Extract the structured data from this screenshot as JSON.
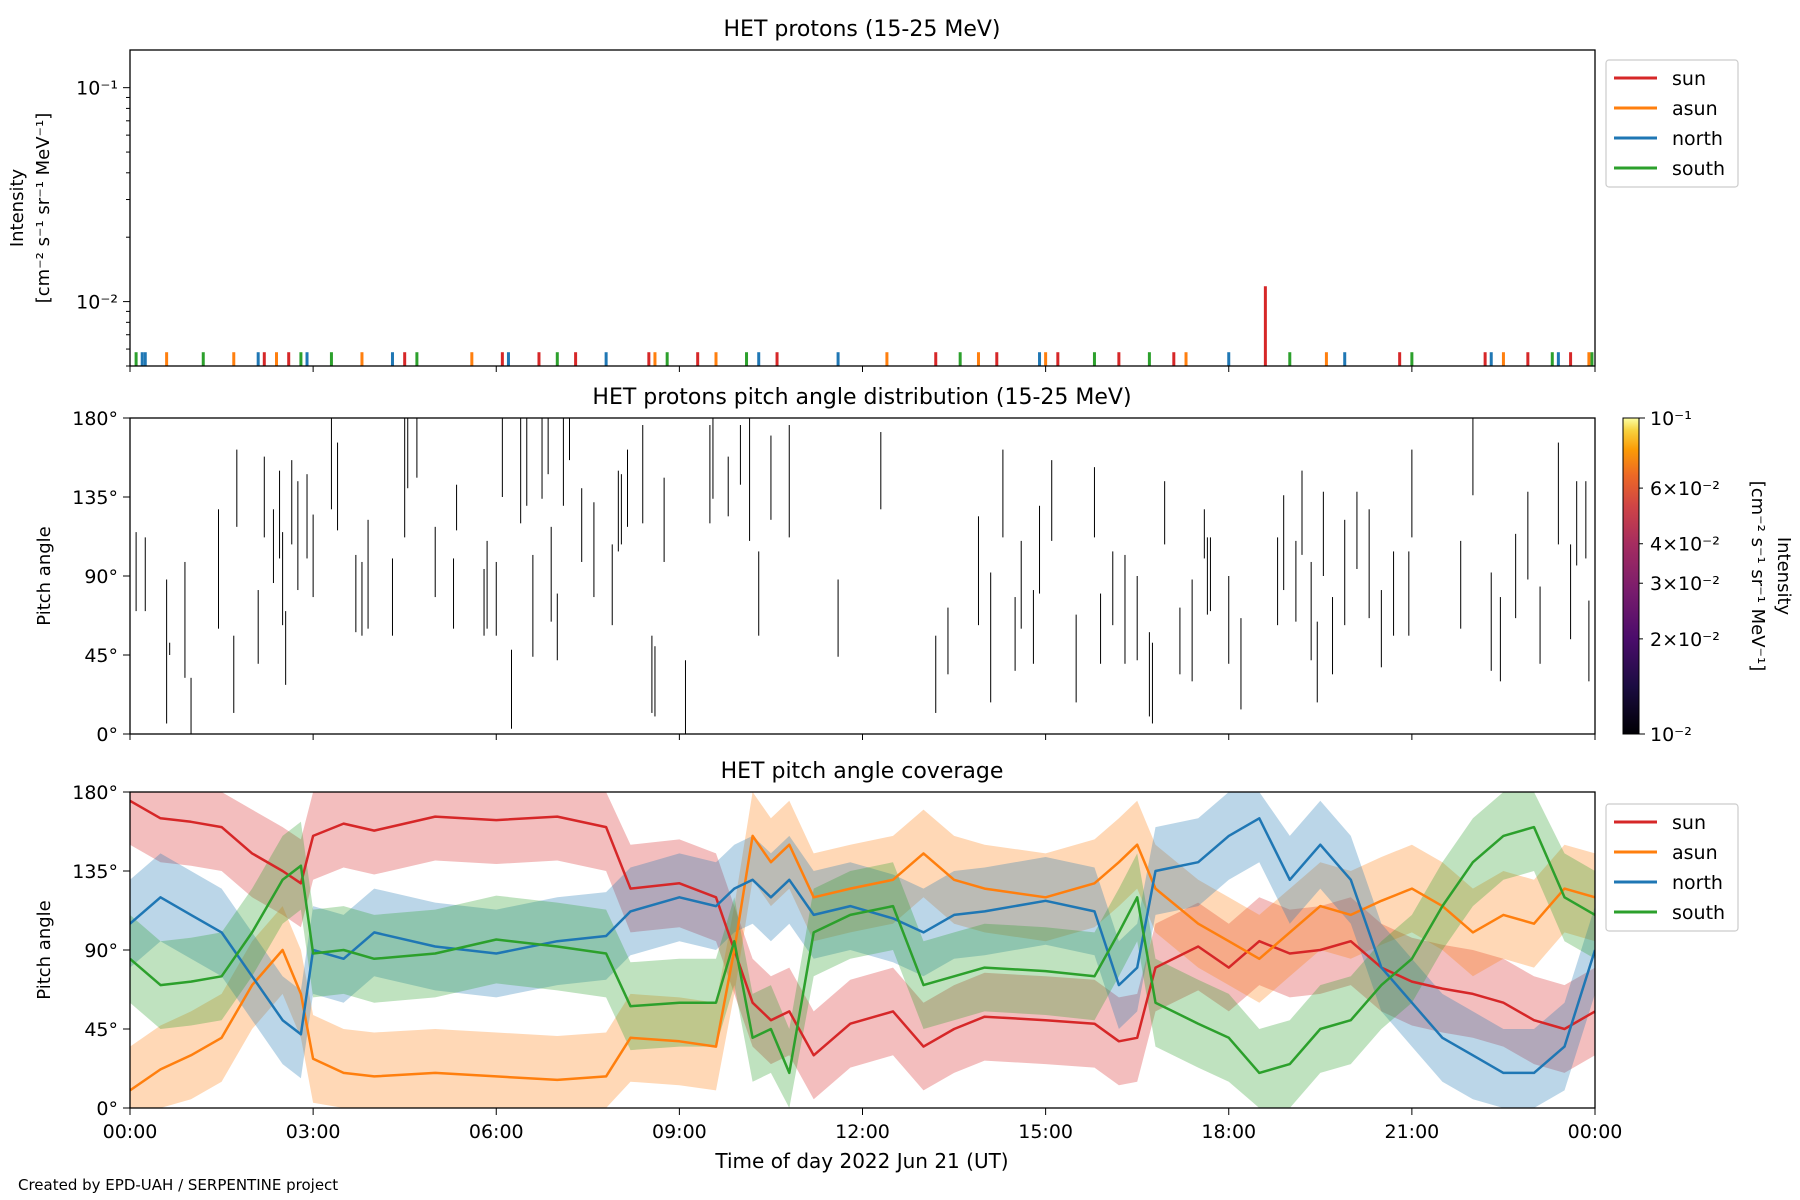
{
  "footer": {
    "credit": "Created by EPD-UAH / SERPENTINE project"
  },
  "colors": {
    "sun": "#d62728",
    "asun": "#ff7f0e",
    "north": "#1f77b4",
    "south": "#2ca02c"
  },
  "chart_data": [
    {
      "type": "bar",
      "title": "HET protons (15-25 MeV)",
      "ylabel_line1": "Intensity",
      "ylabel_line2": "[cm⁻² s⁻¹ sr⁻¹ MeV⁻¹]",
      "yscale": "log",
      "ylim": [
        0.005,
        0.15
      ],
      "y_ticks": [
        {
          "value": 0.1,
          "label": "10⁻¹"
        },
        {
          "value": 0.01,
          "label": "10⁻²"
        }
      ],
      "xlim_hours": [
        0,
        24
      ],
      "legend": {
        "placement": "outside-top-right",
        "entries": [
          "sun",
          "asun",
          "north",
          "south"
        ]
      },
      "series": [
        {
          "name": "sun",
          "x": [
            2.2,
            2.6,
            4.5,
            6.1,
            6.7,
            7.3,
            8.5,
            9.3,
            10.6,
            13.2,
            14.2,
            15.2,
            16.2,
            17.1,
            18.6,
            20.8,
            22.2,
            22.9,
            23.6
          ],
          "values": [
            0.0058,
            0.0058,
            0.0058,
            0.0058,
            0.0058,
            0.0058,
            0.0058,
            0.0058,
            0.0058,
            0.0058,
            0.0058,
            0.0058,
            0.0058,
            0.0058,
            0.0118,
            0.0058,
            0.0058,
            0.0058,
            0.0058
          ]
        },
        {
          "name": "asun",
          "x": [
            0.6,
            1.7,
            2.4,
            3.8,
            5.6,
            8.6,
            9.6,
            12.4,
            13.9,
            15.0,
            17.3,
            19.6,
            22.5,
            23.9
          ],
          "values": [
            0.0058,
            0.0058,
            0.0058,
            0.0058,
            0.0058,
            0.0058,
            0.0058,
            0.0058,
            0.0058,
            0.0058,
            0.0058,
            0.0058,
            0.0058,
            0.0058
          ]
        },
        {
          "name": "north",
          "x": [
            0.2,
            0.25,
            2.1,
            2.9,
            4.3,
            6.2,
            7.8,
            10.3,
            11.6,
            14.9,
            18.0,
            19.9,
            22.3,
            23.4
          ],
          "values": [
            0.0058,
            0.0058,
            0.0058,
            0.0058,
            0.0058,
            0.0058,
            0.0058,
            0.0058,
            0.0058,
            0.0058,
            0.0058,
            0.0058,
            0.0058,
            0.0058
          ]
        },
        {
          "name": "south",
          "x": [
            0.1,
            1.2,
            2.8,
            3.3,
            4.7,
            7.0,
            8.8,
            10.1,
            13.6,
            15.8,
            16.7,
            19.0,
            21.0,
            23.3,
            23.95
          ],
          "values": [
            0.0058,
            0.0058,
            0.0058,
            0.0058,
            0.0058,
            0.0058,
            0.0058,
            0.0058,
            0.0058,
            0.0058,
            0.0058,
            0.0058,
            0.0058,
            0.0058,
            0.0058
          ]
        }
      ]
    },
    {
      "type": "heatmap",
      "title": "HET protons pitch angle distribution (15-25 MeV)",
      "ylabel": "Pitch angle",
      "ylim": [
        0,
        180
      ],
      "y_ticks": [
        {
          "value": 0,
          "label": "0°"
        },
        {
          "value": 45,
          "label": "45°"
        },
        {
          "value": 90,
          "label": "90°"
        },
        {
          "value": 135,
          "label": "135°"
        },
        {
          "value": 180,
          "label": "180°"
        }
      ],
      "xlim_hours": [
        0,
        24
      ],
      "colorbar": {
        "label": "Intensity [cm⁻² s⁻¹ sr⁻¹ MeV⁻¹]",
        "label_line1": "Intensity",
        "label_line2": "[cm⁻² s⁻¹ sr⁻¹ MeV⁻¹]",
        "scale": "log",
        "range": [
          0.01,
          0.1
        ],
        "ticks": [
          {
            "value": 0.1,
            "label": "10⁻¹"
          },
          {
            "value": 0.06,
            "label": "6×10⁻²"
          },
          {
            "value": 0.04,
            "label": "4×10⁻²"
          },
          {
            "value": 0.03,
            "label": "3×10⁻²"
          },
          {
            "value": 0.02,
            "label": "2×10⁻²"
          },
          {
            "value": 0.01,
            "label": "10⁻²"
          }
        ]
      },
      "segments": [
        [
          0.1,
          70,
          115
        ],
        [
          0.25,
          70,
          112
        ],
        [
          0.6,
          6,
          88
        ],
        [
          0.65,
          45,
          52
        ],
        [
          0.9,
          32,
          98
        ],
        [
          1.0,
          0,
          32
        ],
        [
          1.45,
          60,
          128
        ],
        [
          1.7,
          12,
          56
        ],
        [
          1.75,
          118,
          162
        ],
        [
          2.1,
          40,
          82
        ],
        [
          2.2,
          112,
          158
        ],
        [
          2.35,
          86,
          128
        ],
        [
          2.45,
          100,
          150
        ],
        [
          2.5,
          62,
          115
        ],
        [
          2.55,
          28,
          70
        ],
        [
          2.65,
          108,
          156
        ],
        [
          2.75,
          82,
          144
        ],
        [
          2.9,
          100,
          148
        ],
        [
          3.0,
          78,
          125
        ],
        [
          3.3,
          128,
          180
        ],
        [
          3.4,
          116,
          166
        ],
        [
          3.7,
          58,
          102
        ],
        [
          3.8,
          56,
          98
        ],
        [
          3.9,
          60,
          122
        ],
        [
          4.3,
          56,
          100
        ],
        [
          4.5,
          112,
          180
        ],
        [
          4.55,
          140,
          180
        ],
        [
          4.7,
          146,
          180
        ],
        [
          5.0,
          78,
          118
        ],
        [
          5.3,
          60,
          100
        ],
        [
          5.35,
          116,
          142
        ],
        [
          5.8,
          56,
          94
        ],
        [
          5.85,
          60,
          110
        ],
        [
          6.0,
          56,
          98
        ],
        [
          6.1,
          135,
          182
        ],
        [
          6.25,
          3,
          48
        ],
        [
          6.4,
          120,
          180
        ],
        [
          6.5,
          130,
          180
        ],
        [
          6.6,
          44,
          102
        ],
        [
          6.75,
          134,
          182
        ],
        [
          6.85,
          148,
          180
        ],
        [
          6.9,
          64,
          118
        ],
        [
          7.0,
          42,
          80
        ],
        [
          7.1,
          130,
          180
        ],
        [
          7.2,
          156,
          180
        ],
        [
          7.4,
          98,
          140
        ],
        [
          7.6,
          78,
          132
        ],
        [
          7.9,
          62,
          108
        ],
        [
          8.0,
          104,
          150
        ],
        [
          8.05,
          108,
          148
        ],
        [
          8.15,
          118,
          162
        ],
        [
          8.4,
          120,
          176
        ],
        [
          8.55,
          12,
          56
        ],
        [
          8.6,
          10,
          50
        ],
        [
          8.75,
          98,
          146
        ],
        [
          9.1,
          0,
          42
        ],
        [
          9.5,
          120,
          176
        ],
        [
          9.55,
          134,
          180
        ],
        [
          9.8,
          124,
          158
        ],
        [
          10.0,
          142,
          176
        ],
        [
          10.15,
          110,
          180
        ],
        [
          10.3,
          56,
          104
        ],
        [
          10.5,
          122,
          170
        ],
        [
          10.8,
          112,
          176
        ],
        [
          11.6,
          44,
          88
        ],
        [
          12.3,
          128,
          172
        ],
        [
          13.2,
          12,
          56
        ],
        [
          13.4,
          34,
          72
        ],
        [
          13.9,
          62,
          124
        ],
        [
          14.1,
          18,
          92
        ],
        [
          14.3,
          112,
          162
        ],
        [
          14.5,
          36,
          78
        ],
        [
          14.6,
          60,
          110
        ],
        [
          14.8,
          40,
          82
        ],
        [
          14.9,
          80,
          130
        ],
        [
          15.1,
          110,
          156
        ],
        [
          15.5,
          18,
          68
        ],
        [
          15.8,
          112,
          152
        ],
        [
          15.9,
          40,
          80
        ],
        [
          16.1,
          62,
          104
        ],
        [
          16.3,
          40,
          102
        ],
        [
          16.5,
          42,
          90
        ],
        [
          16.7,
          10,
          58
        ],
        [
          16.75,
          6,
          52
        ],
        [
          16.95,
          108,
          144
        ],
        [
          17.2,
          34,
          72
        ],
        [
          17.4,
          30,
          88
        ],
        [
          17.6,
          100,
          128
        ],
        [
          17.65,
          68,
          112
        ],
        [
          17.7,
          70,
          112
        ],
        [
          18.0,
          40,
          90
        ],
        [
          18.2,
          14,
          66
        ],
        [
          18.8,
          62,
          112
        ],
        [
          18.9,
          82,
          136
        ],
        [
          19.1,
          64,
          110
        ],
        [
          19.2,
          102,
          150
        ],
        [
          19.35,
          42,
          98
        ],
        [
          19.45,
          18,
          64
        ],
        [
          19.55,
          90,
          138
        ],
        [
          19.7,
          34,
          78
        ],
        [
          19.9,
          62,
          122
        ],
        [
          20.1,
          94,
          138
        ],
        [
          20.3,
          66,
          128
        ],
        [
          20.5,
          38,
          82
        ],
        [
          20.7,
          56,
          104
        ],
        [
          20.95,
          56,
          104
        ],
        [
          21.0,
          112,
          162
        ],
        [
          21.8,
          60,
          110
        ],
        [
          22.0,
          136,
          180
        ],
        [
          22.3,
          36,
          92
        ],
        [
          22.45,
          30,
          78
        ],
        [
          22.7,
          66,
          114
        ],
        [
          22.9,
          88,
          138
        ],
        [
          23.1,
          40,
          84
        ],
        [
          23.4,
          108,
          166
        ],
        [
          23.6,
          54,
          108
        ],
        [
          23.7,
          96,
          144
        ],
        [
          23.85,
          100,
          144
        ],
        [
          23.9,
          30,
          76
        ]
      ]
    },
    {
      "type": "area",
      "title": "HET pitch angle coverage",
      "xlabel": "Time of day 2022 Jun 21 (UT)",
      "ylabel": "Pitch angle",
      "ylim": [
        0,
        180
      ],
      "y_ticks": [
        {
          "value": 0,
          "label": "0°"
        },
        {
          "value": 45,
          "label": "45°"
        },
        {
          "value": 90,
          "label": "90°"
        },
        {
          "value": 135,
          "label": "135°"
        },
        {
          "value": 180,
          "label": "180°"
        }
      ],
      "xlim_hours": [
        0,
        24
      ],
      "x_ticks": [
        {
          "value": 0,
          "label": "00:00"
        },
        {
          "value": 3,
          "label": "03:00"
        },
        {
          "value": 6,
          "label": "06:00"
        },
        {
          "value": 9,
          "label": "09:00"
        },
        {
          "value": 12,
          "label": "12:00"
        },
        {
          "value": 15,
          "label": "15:00"
        },
        {
          "value": 18,
          "label": "18:00"
        },
        {
          "value": 21,
          "label": "21:00"
        },
        {
          "value": 24,
          "label": "00:00"
        }
      ],
      "band_halfwidth_deg": 25,
      "legend": {
        "placement": "outside-top-right",
        "entries": [
          "sun",
          "asun",
          "north",
          "south"
        ]
      },
      "x": [
        0,
        0.5,
        1,
        1.5,
        2,
        2.5,
        2.8,
        3,
        3.5,
        4,
        5,
        6,
        7,
        7.8,
        8.2,
        9,
        9.6,
        9.9,
        10.2,
        10.5,
        10.8,
        11.2,
        11.8,
        12.5,
        13,
        13.5,
        14,
        15,
        15.8,
        16.2,
        16.5,
        16.8,
        17.5,
        18,
        18.5,
        19,
        19.5,
        20,
        20.5,
        21,
        21.5,
        22,
        22.5,
        23,
        23.5,
        24
      ],
      "series": [
        {
          "name": "sun",
          "values": [
            175,
            165,
            163,
            160,
            145,
            135,
            128,
            155,
            162,
            158,
            166,
            164,
            166,
            160,
            125,
            128,
            120,
            90,
            60,
            50,
            55,
            30,
            48,
            55,
            35,
            45,
            52,
            50,
            48,
            38,
            40,
            80,
            92,
            80,
            95,
            88,
            90,
            95,
            80,
            72,
            68,
            65,
            60,
            50,
            45,
            55
          ]
        },
        {
          "name": "asun",
          "values": [
            10,
            22,
            30,
            40,
            70,
            90,
            65,
            28,
            20,
            18,
            20,
            18,
            16,
            18,
            40,
            38,
            35,
            90,
            155,
            140,
            150,
            120,
            125,
            130,
            145,
            130,
            125,
            120,
            128,
            140,
            150,
            125,
            105,
            95,
            85,
            100,
            115,
            110,
            118,
            125,
            115,
            100,
            110,
            105,
            125,
            120
          ]
        },
        {
          "name": "north",
          "values": [
            105,
            120,
            110,
            100,
            75,
            50,
            42,
            90,
            85,
            100,
            92,
            88,
            95,
            98,
            112,
            120,
            115,
            125,
            130,
            120,
            130,
            110,
            115,
            108,
            100,
            110,
            112,
            118,
            112,
            70,
            80,
            135,
            140,
            155,
            165,
            130,
            150,
            130,
            80,
            60,
            40,
            30,
            20,
            20,
            35,
            90
          ]
        },
        {
          "name": "south",
          "values": [
            85,
            70,
            72,
            75,
            100,
            130,
            138,
            88,
            90,
            85,
            88,
            96,
            92,
            88,
            58,
            60,
            60,
            95,
            40,
            45,
            20,
            100,
            110,
            115,
            70,
            75,
            80,
            78,
            75,
            100,
            120,
            60,
            48,
            40,
            20,
            25,
            45,
            50,
            70,
            85,
            115,
            140,
            155,
            160,
            120,
            110
          ]
        }
      ]
    }
  ]
}
